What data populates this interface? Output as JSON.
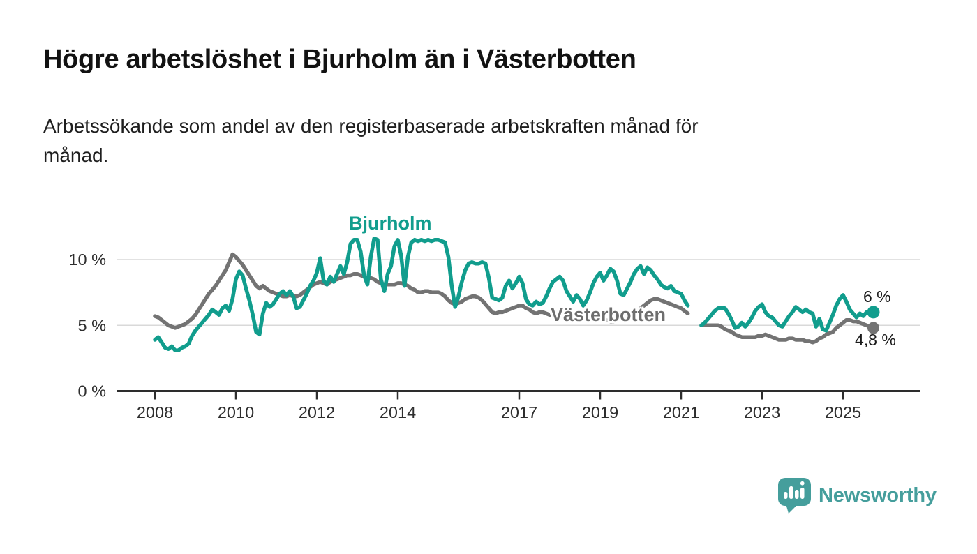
{
  "title": "Högre arbetslöshet i Bjurholm än i Västerbotten",
  "subtitle": "Arbetssökande som andel av den registerbaserade arbetskraften månad för\nmånad.",
  "footer": {
    "brand": "Newsworthy",
    "logo_icon": "speech-bubble-bar-chart-exclamation-icon"
  },
  "colors": {
    "bjurholm": "#119d8d",
    "vasterbotten": "#737373",
    "vasterbotten_label": "#6e6e6e",
    "brand": "#459e9c",
    "grid": "#d9d9d9",
    "axis": "#2d2d2d",
    "text": "#1a1a1a"
  },
  "chart_data": {
    "type": "line",
    "title": "Högre arbetslöshet i Bjurholm än i Västerbotten",
    "subtitle": "Arbetssökande som andel av den registerbaserade arbetskraften månad för månad.",
    "xlabel": "",
    "ylabel": "",
    "ylim": [
      0,
      11.8
    ],
    "grid": "horizontal",
    "legend_position": "inline-labels",
    "x_monthly_start": "2008-01",
    "x_monthly_end": "2025-10",
    "data_gap": [
      "2021-04",
      "2021-06"
    ],
    "yticks": [
      {
        "value": 0,
        "label": "0 %"
      },
      {
        "value": 5,
        "label": "5 %"
      },
      {
        "value": 10,
        "label": "10 %"
      }
    ],
    "xticks": [
      {
        "year": 2008,
        "label": "2008"
      },
      {
        "year": 2010,
        "label": "2010"
      },
      {
        "year": 2012,
        "label": "2012"
      },
      {
        "year": 2014,
        "label": "2014"
      },
      {
        "year": 2017,
        "label": "2017"
      },
      {
        "year": 2019,
        "label": "2019"
      },
      {
        "year": 2021,
        "label": "2021"
      },
      {
        "year": 2023,
        "label": "2023"
      },
      {
        "year": 2025,
        "label": "2025"
      }
    ],
    "series": [
      {
        "name": "Bjurholm",
        "slug": "bjurholm",
        "color": "#119d8d",
        "end_label": "6 %",
        "end_value": 6.0,
        "values": [
          3.9,
          4.1,
          3.7,
          3.3,
          3.2,
          3.4,
          3.1,
          3.1,
          3.3,
          3.4,
          3.6,
          4.2,
          4.6,
          4.9,
          5.2,
          5.5,
          5.8,
          6.2,
          6.0,
          5.8,
          6.3,
          6.5,
          6.1,
          7.0,
          8.5,
          9.1,
          8.8,
          7.8,
          6.9,
          5.8,
          4.5,
          4.3,
          5.9,
          6.7,
          6.4,
          6.6,
          7.0,
          7.4,
          7.6,
          7.3,
          7.6,
          7.2,
          6.3,
          6.4,
          6.9,
          7.4,
          8.0,
          8.4,
          9.0,
          10.1,
          8.4,
          8.1,
          8.7,
          8.3,
          8.9,
          9.5,
          8.9,
          9.8,
          11.2,
          11.5,
          11.5,
          10.6,
          8.8,
          8.1,
          10.2,
          11.6,
          11.5,
          8.5,
          7.6,
          8.9,
          9.5,
          11.0,
          11.5,
          10.3,
          8.0,
          10.2,
          11.3,
          11.5,
          11.4,
          11.5,
          11.4,
          11.5,
          11.4,
          11.5,
          11.5,
          11.4,
          11.3,
          10.2,
          8.0,
          6.4,
          7.2,
          8.3,
          9.2,
          9.7,
          9.8,
          9.7,
          9.7,
          9.8,
          9.7,
          8.6,
          7.1,
          7.0,
          6.9,
          7.1,
          8.0,
          8.4,
          7.8,
          8.2,
          8.7,
          8.2,
          7.0,
          6.6,
          6.5,
          6.8,
          6.6,
          6.7,
          7.2,
          7.8,
          8.3,
          8.5,
          8.7,
          8.4,
          7.6,
          7.2,
          6.8,
          7.3,
          7.0,
          6.5,
          6.9,
          7.5,
          8.2,
          8.7,
          9.0,
          8.4,
          8.8,
          9.3,
          9.1,
          8.4,
          7.4,
          7.3,
          7.8,
          8.3,
          8.9,
          9.3,
          9.5,
          8.9,
          9.4,
          9.2,
          8.8,
          8.5,
          8.1,
          7.9,
          7.8,
          8.0,
          7.6,
          7.5,
          7.4,
          6.9,
          6.5,
          null,
          null,
          null,
          5.0,
          5.2,
          5.5,
          5.8,
          6.1,
          6.3,
          6.3,
          6.3,
          5.9,
          5.4,
          4.8,
          4.9,
          5.2,
          4.9,
          5.2,
          5.6,
          6.1,
          6.4,
          6.6,
          6.0,
          5.7,
          5.6,
          5.3,
          5.0,
          4.9,
          5.3,
          5.7,
          6.0,
          6.4,
          6.2,
          6.0,
          6.2,
          6.0,
          5.9,
          4.9,
          5.5,
          4.7,
          4.6,
          5.2,
          5.8,
          6.5,
          7.0,
          7.3,
          6.8,
          6.2,
          5.9,
          5.6,
          5.9,
          5.7,
          6.0,
          5.9,
          6.0
        ]
      },
      {
        "name": "Västerbotten",
        "slug": "vasterbotten",
        "color": "#737373",
        "end_label": "4,8 %",
        "end_value": 4.8,
        "values": [
          5.7,
          5.6,
          5.4,
          5.2,
          5.0,
          4.9,
          4.8,
          4.9,
          5.0,
          5.1,
          5.3,
          5.5,
          5.8,
          6.2,
          6.6,
          7.0,
          7.4,
          7.7,
          8.0,
          8.4,
          8.8,
          9.2,
          9.8,
          10.4,
          10.2,
          9.9,
          9.6,
          9.2,
          8.8,
          8.4,
          8.0,
          7.8,
          8.0,
          7.8,
          7.6,
          7.5,
          7.4,
          7.3,
          7.2,
          7.2,
          7.3,
          7.2,
          7.2,
          7.3,
          7.5,
          7.7,
          7.9,
          8.1,
          8.2,
          8.3,
          8.2,
          8.1,
          8.3,
          8.4,
          8.5,
          8.6,
          8.7,
          8.8,
          8.8,
          8.9,
          8.9,
          8.8,
          8.7,
          8.6,
          8.6,
          8.5,
          8.3,
          8.2,
          8.1,
          8.1,
          8.1,
          8.1,
          8.2,
          8.2,
          8.1,
          8.0,
          7.8,
          7.7,
          7.5,
          7.5,
          7.6,
          7.6,
          7.5,
          7.5,
          7.5,
          7.4,
          7.2,
          6.9,
          6.7,
          6.6,
          6.7,
          6.8,
          7.0,
          7.1,
          7.2,
          7.2,
          7.1,
          6.9,
          6.6,
          6.3,
          6.0,
          5.9,
          6.0,
          6.0,
          6.1,
          6.2,
          6.3,
          6.4,
          6.5,
          6.5,
          6.3,
          6.2,
          6.0,
          5.9,
          6.0,
          6.0,
          5.9,
          5.8,
          5.8,
          5.9,
          5.8,
          5.7,
          5.6,
          5.6,
          5.5,
          5.4,
          5.4,
          5.5,
          5.5,
          5.4,
          5.4,
          5.5,
          5.5,
          5.4,
          5.4,
          5.3,
          5.3,
          5.4,
          5.5,
          5.6,
          5.7,
          5.8,
          5.9,
          6.1,
          6.3,
          6.5,
          6.7,
          6.9,
          7.0,
          7.0,
          6.9,
          6.8,
          6.7,
          6.6,
          6.5,
          6.4,
          6.3,
          6.1,
          5.9,
          null,
          null,
          null,
          5.0,
          5.0,
          5.0,
          5.0,
          5.0,
          5.0,
          4.9,
          4.7,
          4.6,
          4.5,
          4.3,
          4.2,
          4.1,
          4.1,
          4.1,
          4.1,
          4.1,
          4.2,
          4.2,
          4.3,
          4.2,
          4.1,
          4.0,
          3.9,
          3.9,
          3.9,
          4.0,
          4.0,
          3.9,
          3.9,
          3.9,
          3.8,
          3.8,
          3.7,
          3.8,
          4.0,
          4.1,
          4.3,
          4.4,
          4.5,
          4.8,
          5.0,
          5.2,
          5.4,
          5.4,
          5.3,
          5.3,
          5.2,
          5.1,
          5.0,
          4.9,
          4.8
        ]
      }
    ]
  }
}
